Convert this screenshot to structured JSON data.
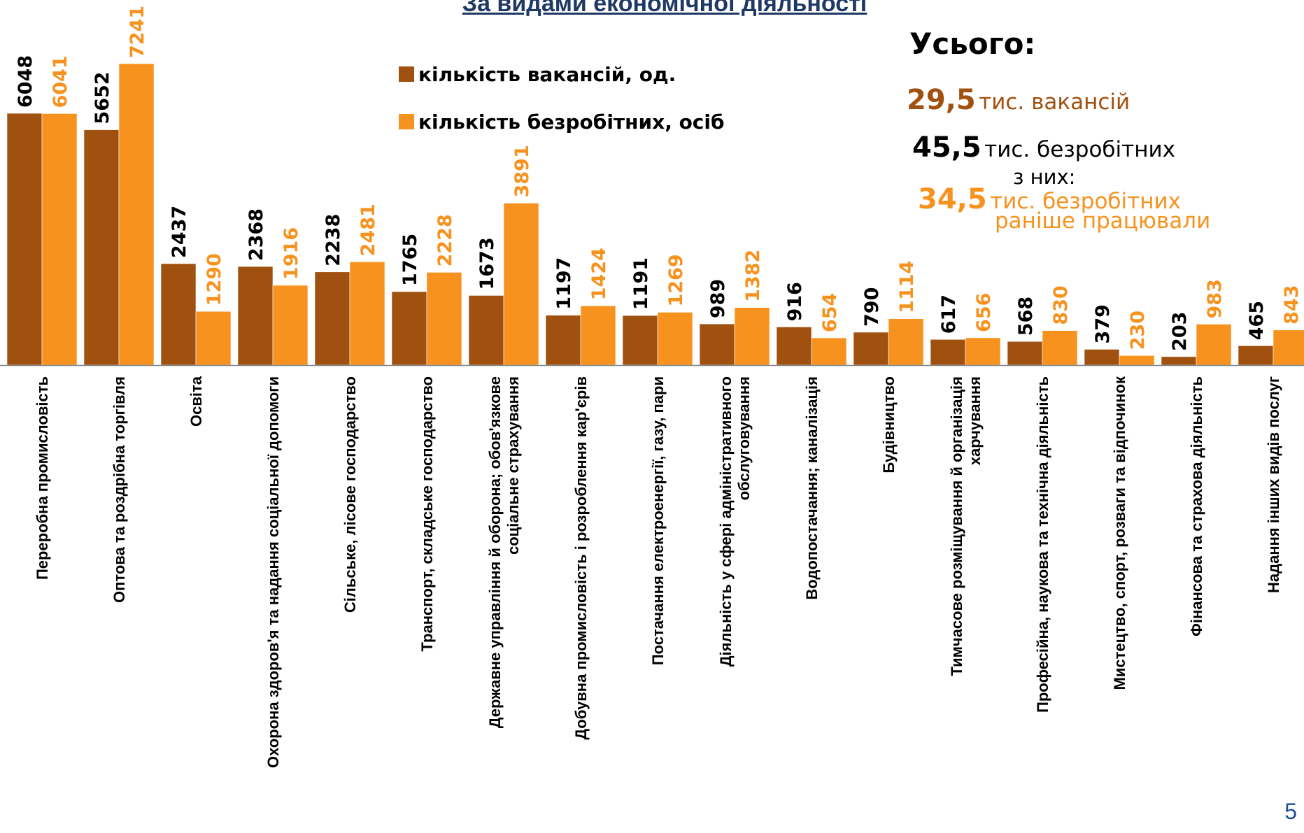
{
  "chart_data": {
    "type": "bar",
    "title": "За видами економічної діяльності",
    "categories": [
      "Переробна промисловість",
      "Оптова та роздрібна торгівля",
      "Освіта",
      "Охорона здоров'я та надання соціальної допомоги",
      "Сільське, лісове господарство",
      "Транспорт, складське господарство",
      "Державне управління й оборона; обов'язкове соціальне страхування",
      "Добувна промисловість і розроблення кар'єрів",
      "Постачання електроенергії, газу, пари",
      "Діяльність у сфері адміністративного обслуговування",
      "Водопостачання; каналізація",
      "Будівництво",
      "Тимчасове розміщування й організація харчування",
      "Професійна, наукова та технічна діяльність",
      "Мистецтво, спорт, розваги та відпочинок",
      "Фінансова та страхова діяльність",
      "Надання інших видів послуг"
    ],
    "category_lines": [
      [
        "Переробна промисловість"
      ],
      [
        "Оптова та роздрібна торгівля"
      ],
      [
        "Освіта"
      ],
      [
        "Охорона здоров'я та надання соціальної допомоги"
      ],
      [
        "Сільське, лісове господарство"
      ],
      [
        "Транспорт, складське господарство"
      ],
      [
        "Державне управління й оборона; обов'язкове",
        "соціальне страхування"
      ],
      [
        "Добувна промисловість і розроблення кар'єрів"
      ],
      [
        "Постачання електроенергії, газу, пари"
      ],
      [
        "Діяльність у сфері адміністративного",
        "обслуговування"
      ],
      [
        "Водопостачання; каналізація"
      ],
      [
        "Будівництво"
      ],
      [
        "Тимчасове розміщування й організація",
        "харчування"
      ],
      [
        "Професійна, наукова та технічна діяльність"
      ],
      [
        "Мистецтво, спорт, розваги та відпочинок"
      ],
      [
        "Фінансова та страхова діяльність"
      ],
      [
        "Надання інших видів послуг"
      ]
    ],
    "series": [
      {
        "name": "кількість вакансій, од.",
        "color": "#A0500F",
        "values": [
          6048,
          5652,
          2437,
          2368,
          2238,
          1765,
          1673,
          1197,
          1191,
          989,
          916,
          790,
          617,
          568,
          379,
          203,
          465
        ]
      },
      {
        "name": "кількість безробітних, осіб",
        "color": "#F7921E",
        "values": [
          6041,
          7241,
          1290,
          1916,
          2481,
          2228,
          3891,
          1424,
          1269,
          1382,
          654,
          1114,
          656,
          830,
          230,
          983,
          843
        ]
      }
    ],
    "ylim": [
      0,
      7241
    ],
    "grid": false,
    "legend_position": "top-center"
  },
  "legend_label_color": "#000000",
  "totals": {
    "heading": "Усього:",
    "vacancies_value": "29,5",
    "vacancies_text": "тис. вакансій",
    "unemployed_value": "45,5",
    "unemployed_text": "тис. безробітних",
    "of_them": "з них:",
    "previously_value": "34,5",
    "previously_text_1": "тис. безробітних",
    "previously_text_2": "раніше працювали",
    "color_vacancies": "#A0500F",
    "color_previously": "#F7921E"
  },
  "page_number": "5"
}
